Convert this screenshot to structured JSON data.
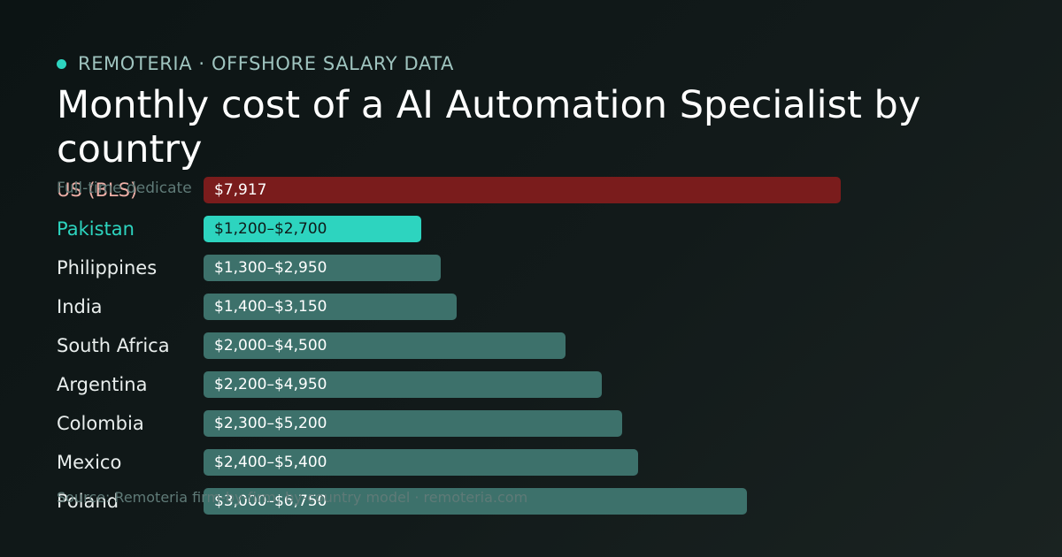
{
  "header": {
    "brand": "REMOTERIA · OFFSHORE SALARY DATA",
    "title": "Monthly cost of a AI Automation Specialist by country",
    "subtitle": "Full-time dedicate",
    "source": "Source: Remoteria firm-by-firm, by-country model · remoteria.com"
  },
  "colors": {
    "brand_dot": "#2dd4bf",
    "highlight_bar": "#2dd4bf",
    "benchmark_bar": "#7a1c1c",
    "default_bar": "#3d716b",
    "highlight_label": "#2dd4bf",
    "benchmark_label": "#f0b0a8"
  },
  "chart_data": {
    "type": "bar",
    "orientation": "horizontal",
    "categories": [
      "US (BLS)",
      "Pakistan",
      "Philippines",
      "India",
      "South Africa",
      "Argentina",
      "Colombia",
      "Mexico",
      "Poland"
    ],
    "ranges": [
      [
        7917,
        7917
      ],
      [
        1200,
        2700
      ],
      [
        1300,
        2950
      ],
      [
        1400,
        3150
      ],
      [
        2000,
        4500
      ],
      [
        2200,
        4950
      ],
      [
        2300,
        5200
      ],
      [
        2400,
        5400
      ],
      [
        3000,
        6750
      ]
    ],
    "value_labels": [
      "$7,917",
      "$1,200–$2,700",
      "$1,300–$2,950",
      "$1,400–$3,150",
      "$2,000–$4,500",
      "$2,200–$4,950",
      "$2,300–$5,200",
      "$2,400–$5,400",
      "$3,000–$6,750"
    ],
    "styles": [
      "benchmark",
      "highlight",
      "default",
      "default",
      "default",
      "default",
      "default",
      "default",
      "default"
    ],
    "xlim": [
      0,
      7917
    ],
    "title": "Monthly cost of a AI Automation Specialist by country"
  }
}
